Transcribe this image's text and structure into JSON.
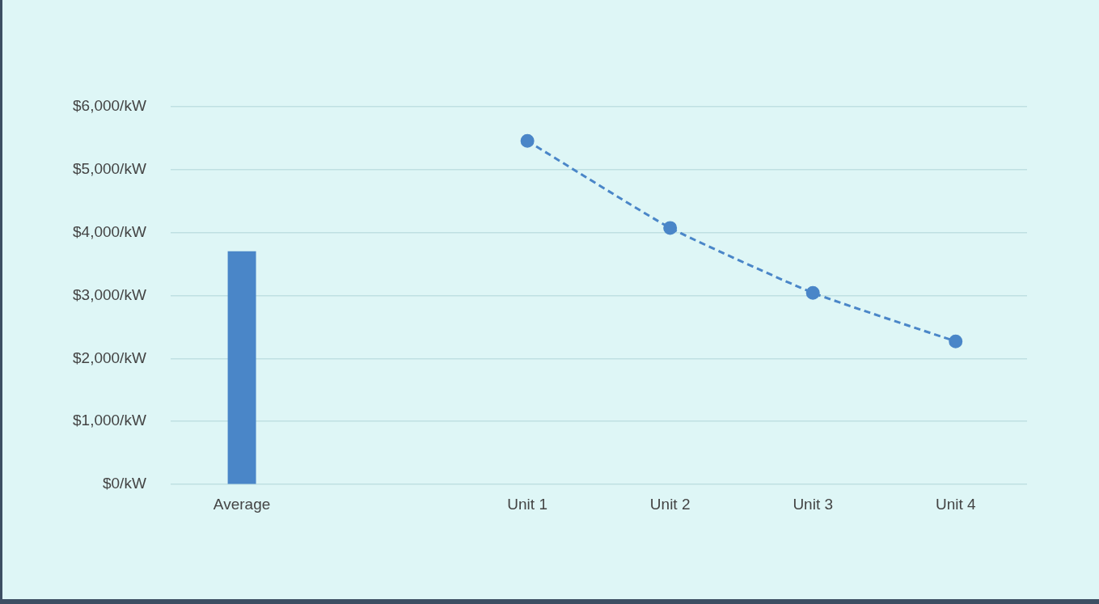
{
  "chart_data": {
    "type": "bar",
    "categories": [
      "Average",
      null,
      "Unit 1",
      "Unit 2",
      "Unit 3",
      "Unit 4"
    ],
    "series": [
      {
        "type": "bar",
        "color": "#4a86c8",
        "values": [
          3700,
          null,
          null,
          null,
          null,
          null
        ]
      },
      {
        "type": "line",
        "color": "#4a86c8",
        "values": [
          null,
          null,
          5450,
          4070,
          3040,
          2270
        ],
        "marker": "circle",
        "line_style": "dashed"
      }
    ],
    "ylim": [
      0,
      6000
    ],
    "yticks": [
      {
        "value": 0,
        "label": "$0/kW"
      },
      {
        "value": 1000,
        "label": "$1,000/kW"
      },
      {
        "value": 2000,
        "label": "$2,000/kW"
      },
      {
        "value": 3000,
        "label": "$3,000/kW"
      },
      {
        "value": 4000,
        "label": "$4,000/kW"
      },
      {
        "value": 5000,
        "label": "$5,000/kW"
      },
      {
        "value": 6000,
        "label": "$6,000/kW"
      }
    ],
    "grid": "y",
    "legend": false
  }
}
